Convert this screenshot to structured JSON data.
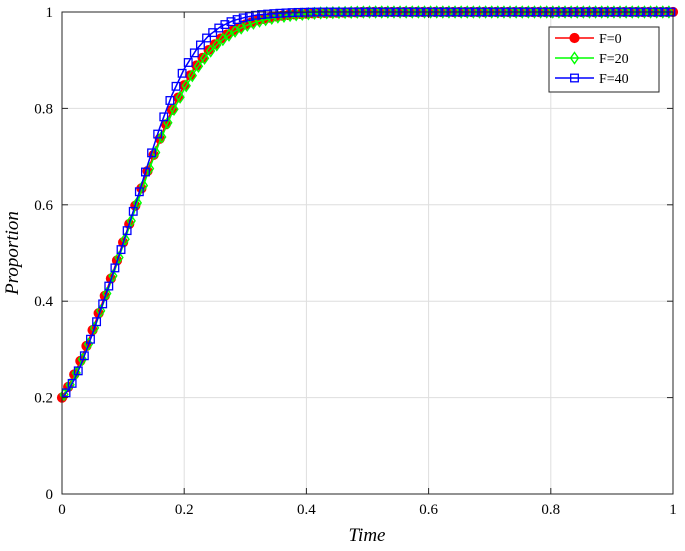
{
  "chart_data": {
    "type": "line",
    "xlabel": "Time",
    "ylabel": "Proportion",
    "xlim": [
      0,
      1
    ],
    "ylim": [
      0,
      1
    ],
    "grid": true,
    "legend_position": "top-right",
    "x_ticks": [
      0,
      0.2,
      0.4,
      0.6,
      0.8,
      1
    ],
    "x_tick_labels": [
      "0",
      "0.2",
      "0.4",
      "0.6",
      "0.8",
      "1"
    ],
    "y_ticks": [
      0,
      0.2,
      0.4,
      0.6,
      0.8,
      1
    ],
    "y_tick_labels": [
      "0",
      "0.2",
      "0.4",
      "0.6",
      "0.8",
      "1"
    ],
    "series": [
      {
        "name": "F=0",
        "color": "#ff0000",
        "marker": "circle",
        "x": [
          0,
          0.01,
          0.02,
          0.03,
          0.04,
          0.05,
          0.06,
          0.08,
          0.1,
          0.12,
          0.14,
          0.16,
          0.18,
          0.2,
          0.22,
          0.24,
          0.26,
          0.28,
          0.3,
          0.32,
          0.35,
          0.38,
          0.42,
          0.5,
          0.6,
          0.7,
          0.8,
          0.9,
          1.0
        ],
        "y": [
          0.2,
          0.222,
          0.248,
          0.276,
          0.307,
          0.34,
          0.375,
          0.447,
          0.522,
          0.598,
          0.67,
          0.737,
          0.797,
          0.848,
          0.889,
          0.921,
          0.945,
          0.962,
          0.974,
          0.983,
          0.991,
          0.995,
          0.998,
          1.0,
          1.0,
          1.0,
          1.0,
          1.0,
          1.0
        ]
      },
      {
        "name": "F=20",
        "color": "#00ff00",
        "marker": "diamond",
        "x": [
          0,
          0.01,
          0.02,
          0.03,
          0.04,
          0.05,
          0.06,
          0.08,
          0.1,
          0.12,
          0.14,
          0.16,
          0.18,
          0.2,
          0.22,
          0.24,
          0.26,
          0.28,
          0.3,
          0.32,
          0.35,
          0.38,
          0.42,
          0.5,
          0.6,
          0.7,
          0.8,
          0.9,
          1.0
        ],
        "y": [
          0.2,
          0.219,
          0.242,
          0.269,
          0.3,
          0.333,
          0.368,
          0.44,
          0.516,
          0.592,
          0.664,
          0.731,
          0.79,
          0.84,
          0.882,
          0.915,
          0.94,
          0.958,
          0.971,
          0.98,
          0.989,
          0.994,
          0.998,
          1.0,
          1.0,
          1.0,
          1.0,
          1.0,
          1.0
        ]
      },
      {
        "name": "F=40",
        "color": "#0000ff",
        "marker": "square",
        "x": [
          0,
          0.01,
          0.02,
          0.03,
          0.04,
          0.05,
          0.06,
          0.08,
          0.1,
          0.12,
          0.14,
          0.16,
          0.18,
          0.2,
          0.22,
          0.24,
          0.26,
          0.28,
          0.3,
          0.32,
          0.35,
          0.38,
          0.42,
          0.5,
          0.6,
          0.7,
          0.8,
          0.9,
          1.0
        ],
        "y": [
          0.2,
          0.215,
          0.237,
          0.265,
          0.298,
          0.333,
          0.37,
          0.444,
          0.52,
          0.6,
          0.682,
          0.76,
          0.828,
          0.882,
          0.922,
          0.951,
          0.97,
          0.982,
          0.989,
          0.994,
          0.997,
          0.999,
          1.0,
          1.0,
          1.0,
          1.0,
          1.0,
          1.0,
          1.0
        ]
      }
    ]
  }
}
